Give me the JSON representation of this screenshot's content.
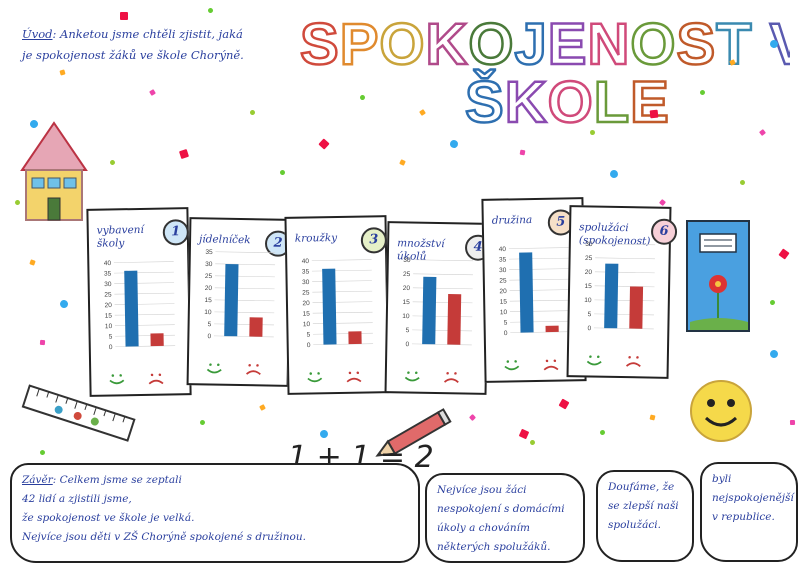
{
  "title": {
    "line1": "SPOKOJENOST VE",
    "line2": "ŠKOLE"
  },
  "intro": {
    "label": "Úvod",
    "text": ": Anketou jsme chtěli zjistit, jaká je spokojenost žáků ve škole Chorýně."
  },
  "equation": "1 + 1 = 2",
  "colors": {
    "satisfied": "#1f6fb0",
    "dissatisfied": "#c53b39",
    "title_letters": [
      "#d04a3c",
      "#e08a2e",
      "#c9a43b",
      "#b04a8a",
      "#4a7a3a",
      "#2e6fb0",
      "#8a4ab0",
      "#d04a7a",
      "#6a9a3a",
      "#c05a2a",
      "#3a8ab0",
      "#a03a3a",
      "#5a5ab0",
      "#b07a2a"
    ]
  },
  "icons": [
    "house-icon",
    "ruler-icon",
    "pencil-icon",
    "notebook-icon",
    "flower-icon",
    "smiley-face-icon",
    "confetti-icon"
  ],
  "chart_data": [
    {
      "type": "bar",
      "number": "1",
      "title": "vybavení školy",
      "categories": [
        "spokojení",
        "nespokojení"
      ],
      "values": [
        36,
        6
      ],
      "ylim": [
        0,
        40
      ],
      "yticks": [
        0,
        5,
        10,
        15,
        20,
        25,
        30,
        35,
        40
      ]
    },
    {
      "type": "bar",
      "number": "2",
      "title": "jídelníček",
      "categories": [
        "spokojení",
        "nespokojení"
      ],
      "values": [
        30,
        8
      ],
      "ylim": [
        0,
        35
      ],
      "yticks": [
        0,
        5,
        10,
        15,
        20,
        25,
        30,
        35
      ]
    },
    {
      "type": "bar",
      "number": "3",
      "title": "kroužky",
      "categories": [
        "spokojení",
        "nespokojení"
      ],
      "values": [
        36,
        6
      ],
      "ylim": [
        0,
        40
      ],
      "yticks": [
        0,
        5,
        10,
        15,
        20,
        25,
        30,
        35,
        40
      ]
    },
    {
      "type": "bar",
      "number": "4",
      "title": "množství úkolů",
      "categories": [
        "spokojení",
        "nespokojení"
      ],
      "values": [
        24,
        18
      ],
      "ylim": [
        0,
        30
      ],
      "yticks": [
        0,
        5,
        10,
        15,
        20,
        25,
        30
      ]
    },
    {
      "type": "bar",
      "number": "5",
      "title": "družina",
      "categories": [
        "spokojení",
        "nespokojení"
      ],
      "values": [
        38,
        3
      ],
      "ylim": [
        0,
        40
      ],
      "yticks": [
        0,
        5,
        10,
        15,
        20,
        25,
        30,
        35,
        40
      ]
    },
    {
      "type": "bar",
      "number": "6",
      "title": "spolužáci (spokojenost)",
      "categories": [
        "spokojení",
        "nespokojení"
      ],
      "values": [
        23,
        15
      ],
      "ylim": [
        0,
        30
      ],
      "yticks": [
        0,
        5,
        10,
        15,
        20,
        25,
        30
      ]
    }
  ],
  "conclusion": {
    "label": "Závěr",
    "lines": [
      ": Celkem jsme se zeptali",
      "42 lidí a zjistili jsme,",
      "že spokojenost ve škole je velká.",
      "Nejvíce jsou děti v ZŠ Chorýně spokojené s družinou."
    ],
    "box2": "Nejvíce jsou žáci nespokojení s domácími úkoly a chováním některých spolužáků.",
    "box3": "Doufáme, že se zlepší naši spolužáci.",
    "box4": "byli nejspokojenější v republice."
  }
}
